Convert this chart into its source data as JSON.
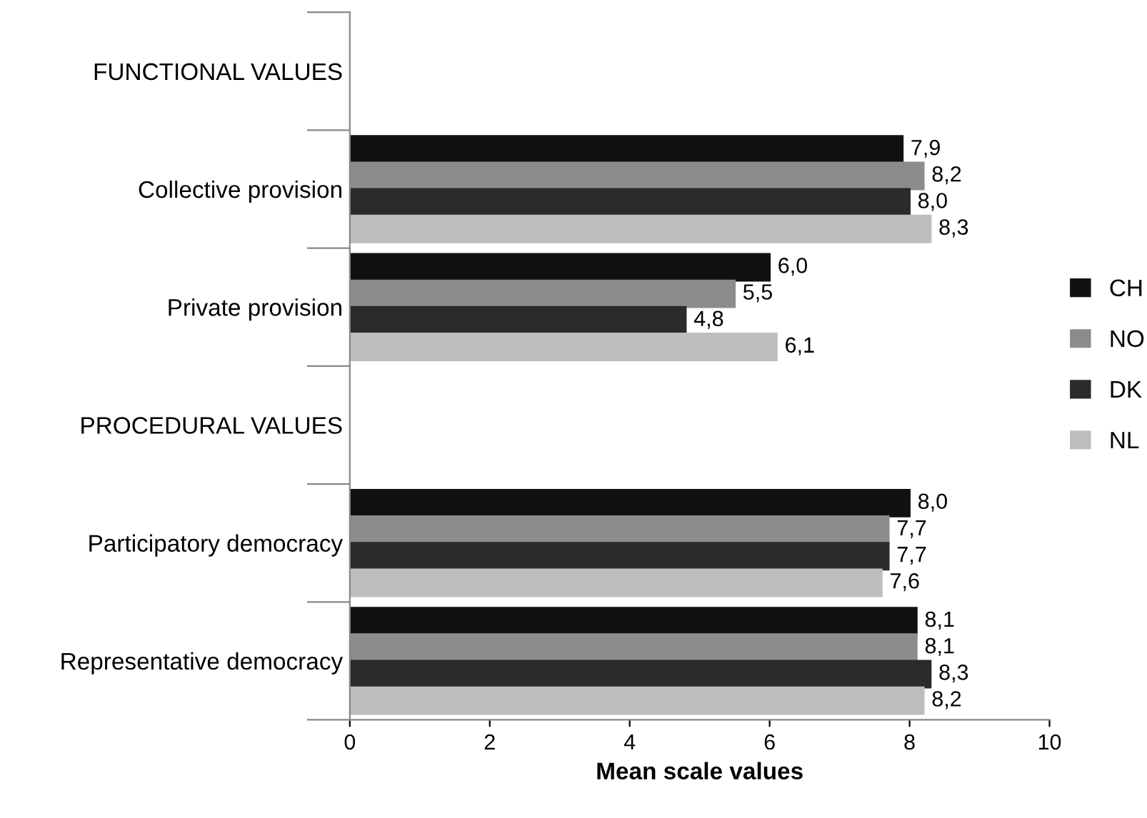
{
  "chart_data": {
    "type": "bar",
    "orientation": "horizontal",
    "xlabel": "Mean scale values",
    "categories": [
      "FUNCTIONAL VALUES",
      "Collective provision",
      "Private provision",
      "PROCEDURAL VALUES",
      "Participatory democracy",
      "Representative democracy"
    ],
    "series": [
      {
        "name": "CH",
        "color": "#111111",
        "values": [
          null,
          7.9,
          6.0,
          null,
          8.0,
          8.1
        ],
        "value_labels": [
          null,
          "7,9",
          "6,0",
          null,
          "8,0",
          "8,1"
        ]
      },
      {
        "name": "NO",
        "color": "#8c8c8c",
        "values": [
          null,
          8.2,
          5.5,
          null,
          7.7,
          8.1
        ],
        "value_labels": [
          null,
          "8,2",
          "5,5",
          null,
          "7,7",
          "8,1"
        ]
      },
      {
        "name": "DK",
        "color": "#2b2b2b",
        "values": [
          null,
          8.0,
          4.8,
          null,
          7.7,
          8.3
        ],
        "value_labels": [
          null,
          "8,0",
          "4,8",
          null,
          "7,7",
          "8,3"
        ]
      },
      {
        "name": "NL",
        "color": "#bdbdbd",
        "values": [
          null,
          8.3,
          6.1,
          null,
          7.6,
          8.2
        ],
        "value_labels": [
          null,
          "8,3",
          "6,1",
          null,
          "7,6",
          "8,2"
        ]
      }
    ],
    "xlim": [
      0,
      10
    ],
    "xticks": [
      0,
      2,
      4,
      6,
      8,
      10
    ],
    "grid": false,
    "legend": "right"
  }
}
